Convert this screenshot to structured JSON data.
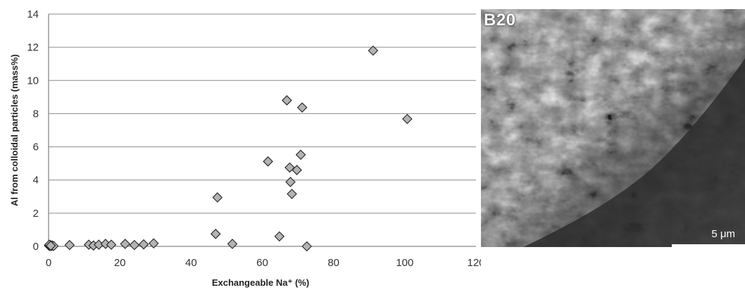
{
  "chart_data": {
    "type": "scatter",
    "xlabel": "Exchangeable Na⁺ (%)",
    "ylabel": "Al from colloidal particles (mass%)",
    "xlim": [
      0,
      120
    ],
    "ylim": [
      0,
      14
    ],
    "xticks": [
      0,
      20,
      40,
      60,
      80,
      100,
      120
    ],
    "yticks": [
      0,
      2,
      4,
      6,
      8,
      10,
      12,
      14
    ],
    "grid": "horizontal",
    "marker": "diamond",
    "marker_color": "#b3b3b3",
    "x": [
      0.1,
      0.3,
      0.5,
      0.8,
      1.0,
      1.4,
      0.2,
      0.6,
      5.9,
      11.3,
      12.6,
      14.1,
      16.0,
      17.6,
      21.5,
      24.1,
      26.7,
      29.5,
      46.9,
      47.4,
      51.6,
      61.6,
      64.8,
      66.9,
      67.7,
      67.9,
      68.3,
      69.7,
      70.8,
      71.2,
      72.5,
      91.1,
      100.7
    ],
    "y": [
      0.05,
      0.02,
      0.08,
      0.03,
      0.05,
      0.02,
      0.1,
      0.04,
      0.08,
      0.1,
      0.05,
      0.1,
      0.15,
      0.1,
      0.15,
      0.08,
      0.12,
      0.18,
      0.75,
      2.95,
      0.15,
      5.12,
      0.6,
      8.8,
      4.75,
      3.88,
      3.16,
      4.6,
      5.52,
      8.37,
      0.0,
      11.8,
      7.68
    ]
  },
  "image_panel": {
    "label": "B20",
    "scale_label": "5 μm"
  }
}
